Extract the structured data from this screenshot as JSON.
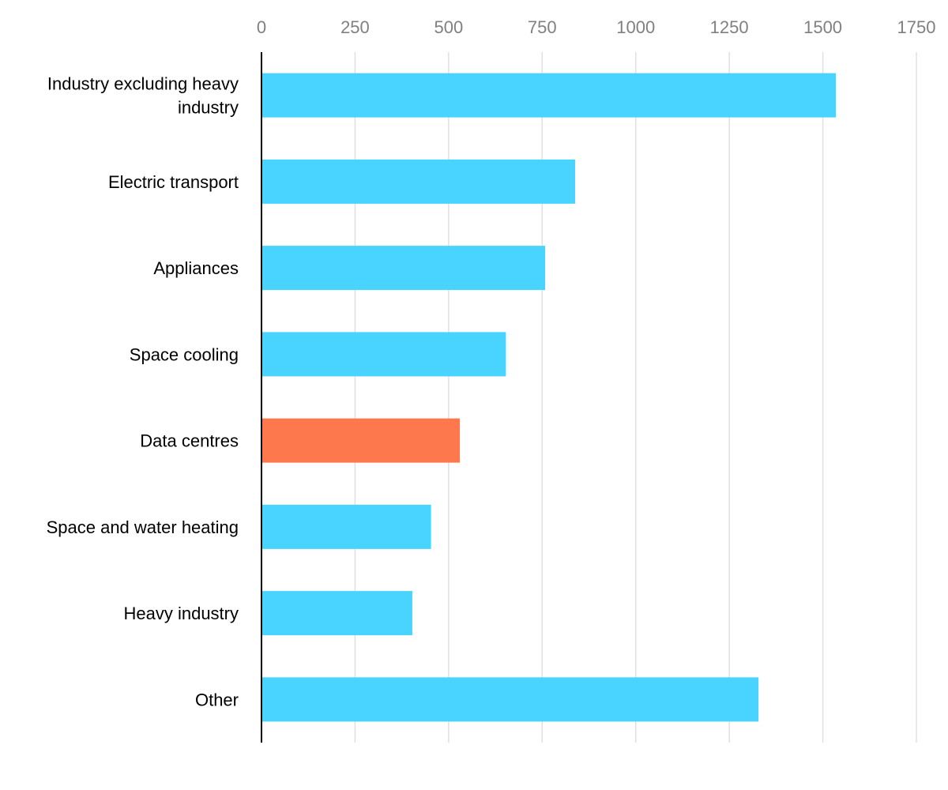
{
  "chart_data": {
    "type": "bar",
    "orientation": "horizontal",
    "categories": [
      "Industry excluding heavy industry",
      "Electric transport",
      "Appliances",
      "Space cooling",
      "Data centres",
      "Space and water heating",
      "Heavy industry",
      "Other"
    ],
    "category_lines": [
      [
        "Industry excluding heavy",
        "industry"
      ],
      [
        "Electric transport"
      ],
      [
        "Appliances"
      ],
      [
        "Space cooling"
      ],
      [
        "Data centres"
      ],
      [
        "Space and water heating"
      ],
      [
        "Heavy industry"
      ],
      [
        "Other"
      ]
    ],
    "values": [
      1535,
      838,
      758,
      653,
      530,
      453,
      403,
      1328
    ],
    "highlight_index": 4,
    "title": "",
    "xlabel": "",
    "ylabel": "",
    "xlim": [
      0,
      1750
    ],
    "x_ticks": [
      0,
      250,
      500,
      750,
      1000,
      1250,
      1500,
      1750
    ],
    "x_tick_labels": [
      "0",
      "250",
      "500",
      "750",
      "1000",
      "1250",
      "1500",
      "1750"
    ],
    "x_axis_position": "top",
    "grid": true,
    "legend": "none",
    "colors": {
      "bar": "#48d4fe",
      "highlight": "#fe784e",
      "grid": "#e0e0e0",
      "axis": "#000000",
      "tick_text": "#808080",
      "label_text": "#000000"
    }
  }
}
